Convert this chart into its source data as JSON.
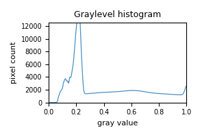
{
  "title": "Graylevel histogram",
  "xlabel": "gray value",
  "ylabel": "pixel count",
  "xlim": [
    0.0,
    1.0
  ],
  "ylim": [
    0,
    12500
  ],
  "yticks": [
    0,
    2000,
    4000,
    6000,
    8000,
    10000,
    12000
  ],
  "xticks": [
    0.0,
    0.2,
    0.4,
    0.6,
    0.8,
    1.0
  ],
  "line_color": "#4a90c4",
  "figsize": [
    2.95,
    2.0
  ],
  "dpi": 100
}
